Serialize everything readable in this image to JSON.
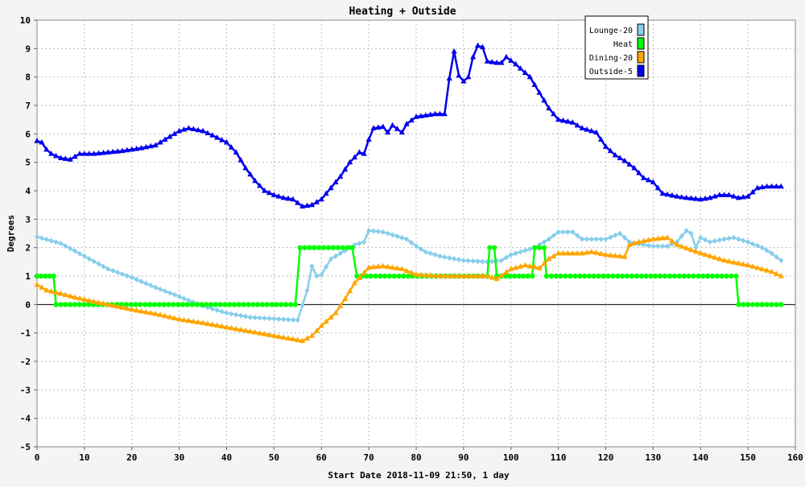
{
  "chart_data": {
    "type": "line",
    "title": "Heating + Outside",
    "xlabel": "Start Date 2018-11-09 21:50, 1 day",
    "ylabel": "Degrees",
    "xlim": [
      0,
      160
    ],
    "ylim": [
      -5,
      10
    ],
    "xticks": [
      "0",
      "10",
      "20",
      "30",
      "40",
      "50",
      "60",
      "70",
      "80",
      "90",
      "100",
      "110",
      "120",
      "130",
      "140",
      "150",
      "160"
    ],
    "yticks": [
      "-5",
      "-4",
      "-3",
      "-2",
      "-1",
      "0",
      "1",
      "2",
      "3",
      "4",
      "5",
      "6",
      "7",
      "8",
      "9",
      "10"
    ],
    "grid": true,
    "legend_position": "top-right",
    "series": [
      {
        "name": "Lounge-20",
        "color": "#87ceeb",
        "marker": "diamond",
        "points": [
          [
            0,
            2.38
          ],
          [
            5,
            2.15
          ],
          [
            10,
            1.7
          ],
          [
            15,
            1.25
          ],
          [
            20,
            0.95
          ],
          [
            25,
            0.6
          ],
          [
            30,
            0.28
          ],
          [
            35,
            -0.05
          ],
          [
            40,
            -0.3
          ],
          [
            45,
            -0.45
          ],
          [
            50,
            -0.5
          ],
          [
            55,
            -0.55
          ],
          [
            57,
            0.5
          ],
          [
            58,
            1.35
          ],
          [
            59,
            1.0
          ],
          [
            60,
            1.05
          ],
          [
            62,
            1.6
          ],
          [
            64,
            1.8
          ],
          [
            67,
            2.1
          ],
          [
            69,
            2.2
          ],
          [
            70,
            2.6
          ],
          [
            73,
            2.55
          ],
          [
            75,
            2.45
          ],
          [
            78,
            2.3
          ],
          [
            80,
            2.05
          ],
          [
            82,
            1.85
          ],
          [
            85,
            1.7
          ],
          [
            90,
            1.55
          ],
          [
            95,
            1.5
          ],
          [
            98,
            1.55
          ],
          [
            100,
            1.75
          ],
          [
            105,
            2.0
          ],
          [
            108,
            2.3
          ],
          [
            110,
            2.55
          ],
          [
            113,
            2.55
          ],
          [
            115,
            2.3
          ],
          [
            120,
            2.3
          ],
          [
            123,
            2.5
          ],
          [
            125,
            2.2
          ],
          [
            128,
            2.1
          ],
          [
            130,
            2.05
          ],
          [
            133,
            2.05
          ],
          [
            135,
            2.2
          ],
          [
            137,
            2.6
          ],
          [
            138,
            2.5
          ],
          [
            139,
            2.0
          ],
          [
            140,
            2.35
          ],
          [
            142,
            2.2
          ],
          [
            145,
            2.3
          ],
          [
            147,
            2.35
          ],
          [
            150,
            2.2
          ],
          [
            153,
            2.0
          ],
          [
            155,
            1.8
          ],
          [
            157,
            1.55
          ]
        ]
      },
      {
        "name": "Heat",
        "color": "#00ff00",
        "marker": "circle",
        "points": [
          [
            0,
            1
          ],
          [
            3.5,
            1
          ],
          [
            4,
            0
          ],
          [
            54.5,
            0
          ],
          [
            55.5,
            2
          ],
          [
            66.5,
            2
          ],
          [
            67.5,
            1
          ],
          [
            95,
            1
          ],
          [
            95.5,
            2
          ],
          [
            96.5,
            2
          ],
          [
            97,
            1
          ],
          [
            104.5,
            1
          ],
          [
            105,
            2
          ],
          [
            107,
            2
          ],
          [
            107.5,
            1
          ],
          [
            147.5,
            1
          ],
          [
            148,
            0
          ],
          [
            157,
            0
          ]
        ]
      },
      {
        "name": "Dining-20",
        "color": "#ffa500",
        "marker": "triangle",
        "points": [
          [
            0,
            0.7
          ],
          [
            2,
            0.5
          ],
          [
            5,
            0.38
          ],
          [
            8,
            0.25
          ],
          [
            12,
            0.1
          ],
          [
            15,
            0.0
          ],
          [
            20,
            -0.18
          ],
          [
            25,
            -0.33
          ],
          [
            30,
            -0.52
          ],
          [
            35,
            -0.65
          ],
          [
            40,
            -0.8
          ],
          [
            45,
            -0.95
          ],
          [
            50,
            -1.1
          ],
          [
            54,
            -1.22
          ],
          [
            56,
            -1.28
          ],
          [
            58,
            -1.1
          ],
          [
            60,
            -0.75
          ],
          [
            63,
            -0.3
          ],
          [
            65,
            0.2
          ],
          [
            67,
            0.75
          ],
          [
            70,
            1.3
          ],
          [
            73,
            1.35
          ],
          [
            77,
            1.25
          ],
          [
            80,
            1.05
          ],
          [
            85,
            1.0
          ],
          [
            90,
            1.0
          ],
          [
            95,
            1.0
          ],
          [
            97,
            0.9
          ],
          [
            100,
            1.25
          ],
          [
            103,
            1.38
          ],
          [
            106,
            1.28
          ],
          [
            108,
            1.6
          ],
          [
            110,
            1.8
          ],
          [
            115,
            1.8
          ],
          [
            117,
            1.85
          ],
          [
            120,
            1.75
          ],
          [
            124,
            1.68
          ],
          [
            125,
            2.1
          ],
          [
            127,
            2.2
          ],
          [
            130,
            2.3
          ],
          [
            133,
            2.35
          ],
          [
            135,
            2.1
          ],
          [
            140,
            1.8
          ],
          [
            145,
            1.55
          ],
          [
            150,
            1.38
          ],
          [
            155,
            1.15
          ],
          [
            157,
            1.0
          ]
        ]
      },
      {
        "name": "Outside-5",
        "color": "#0000ee",
        "marker": "triangle",
        "points": [
          [
            0,
            5.75
          ],
          [
            1,
            5.7
          ],
          [
            2,
            5.45
          ],
          [
            3,
            5.3
          ],
          [
            5,
            5.15
          ],
          [
            7,
            5.1
          ],
          [
            9,
            5.3
          ],
          [
            12,
            5.3
          ],
          [
            15,
            5.35
          ],
          [
            18,
            5.4
          ],
          [
            22,
            5.5
          ],
          [
            25,
            5.6
          ],
          [
            28,
            5.9
          ],
          [
            30,
            6.1
          ],
          [
            32,
            6.2
          ],
          [
            35,
            6.1
          ],
          [
            37,
            5.95
          ],
          [
            40,
            5.7
          ],
          [
            42,
            5.35
          ],
          [
            44,
            4.8
          ],
          [
            46,
            4.35
          ],
          [
            48,
            4.0
          ],
          [
            50,
            3.85
          ],
          [
            52,
            3.75
          ],
          [
            54,
            3.7
          ],
          [
            56,
            3.45
          ],
          [
            58,
            3.5
          ],
          [
            60,
            3.7
          ],
          [
            62,
            4.1
          ],
          [
            64,
            4.5
          ],
          [
            66,
            5.0
          ],
          [
            68,
            5.35
          ],
          [
            69,
            5.3
          ],
          [
            70,
            5.8
          ],
          [
            71,
            6.2
          ],
          [
            73,
            6.25
          ],
          [
            74,
            6.05
          ],
          [
            75,
            6.3
          ],
          [
            77,
            6.05
          ],
          [
            78,
            6.35
          ],
          [
            80,
            6.6
          ],
          [
            82,
            6.65
          ],
          [
            84,
            6.7
          ],
          [
            86,
            6.7
          ],
          [
            87,
            7.95
          ],
          [
            88,
            8.9
          ],
          [
            89,
            8.05
          ],
          [
            90,
            7.85
          ],
          [
            91,
            8.0
          ],
          [
            92,
            8.7
          ],
          [
            93,
            9.1
          ],
          [
            94,
            9.05
          ],
          [
            95,
            8.55
          ],
          [
            97,
            8.5
          ],
          [
            98,
            8.5
          ],
          [
            99,
            8.7
          ],
          [
            101,
            8.45
          ],
          [
            102,
            8.3
          ],
          [
            104,
            8.0
          ],
          [
            106,
            7.45
          ],
          [
            108,
            6.9
          ],
          [
            110,
            6.5
          ],
          [
            113,
            6.4
          ],
          [
            115,
            6.2
          ],
          [
            118,
            6.05
          ],
          [
            120,
            5.55
          ],
          [
            122,
            5.25
          ],
          [
            124,
            5.05
          ],
          [
            126,
            4.8
          ],
          [
            128,
            4.45
          ],
          [
            130,
            4.3
          ],
          [
            132,
            3.9
          ],
          [
            135,
            3.8
          ],
          [
            137,
            3.75
          ],
          [
            140,
            3.7
          ],
          [
            142,
            3.75
          ],
          [
            144,
            3.85
          ],
          [
            146,
            3.85
          ],
          [
            148,
            3.75
          ],
          [
            150,
            3.8
          ],
          [
            152,
            4.1
          ],
          [
            154,
            4.15
          ],
          [
            157,
            4.15
          ]
        ]
      }
    ]
  }
}
